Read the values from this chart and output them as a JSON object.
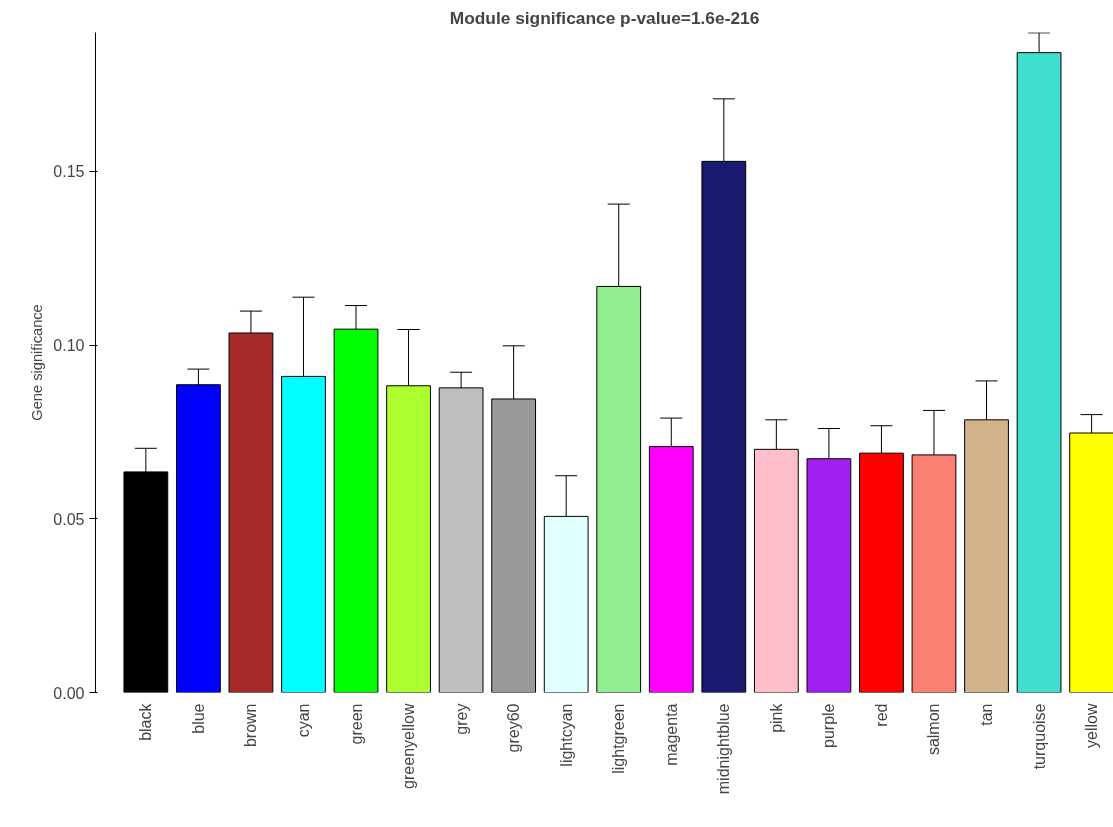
{
  "chart_data": {
    "type": "bar",
    "title": "Module significance p-value=1.6e-216",
    "ylabel": "Gene significance",
    "categories": [
      "black",
      "blue",
      "brown",
      "cyan",
      "green",
      "greenyellow",
      "grey",
      "grey60",
      "lightcyan",
      "lightgreen",
      "magenta",
      "midnightblue",
      "pink",
      "purple",
      "red",
      "salmon",
      "tan",
      "turquoise",
      "yellow"
    ],
    "values": [
      0.0635,
      0.0886,
      0.1035,
      0.091,
      0.1046,
      0.0883,
      0.0877,
      0.0845,
      0.0507,
      0.1169,
      0.0708,
      0.1529,
      0.07,
      0.0673,
      0.0689,
      0.0684,
      0.0785,
      0.1842,
      0.0747
    ],
    "errors": [
      0.0068,
      0.0045,
      0.0063,
      0.0228,
      0.0068,
      0.0162,
      0.0045,
      0.0153,
      0.0117,
      0.0237,
      0.0082,
      0.018,
      0.0085,
      0.0087,
      0.0079,
      0.0128,
      0.0112,
      0.0057,
      0.0053
    ],
    "colors": [
      "#000000",
      "#0000ff",
      "#a52a2a",
      "#00ffff",
      "#00ff00",
      "#adff2f",
      "#bebebe",
      "#999999",
      "#e0ffff",
      "#90ee90",
      "#ff00ff",
      "#191970",
      "#ffc0cb",
      "#a020f0",
      "#ff0000",
      "#fa8072",
      "#d2b48c",
      "#40e0d0",
      "#ffff00"
    ],
    "ylim": [
      0,
      0.19
    ],
    "yticks": [
      {
        "value": 0,
        "label": "0.00"
      },
      {
        "value": 0.05,
        "label": "0.05"
      },
      {
        "value": 0.1,
        "label": "0.10"
      },
      {
        "value": 0.15,
        "label": "0.15"
      }
    ],
    "grid": false
  }
}
